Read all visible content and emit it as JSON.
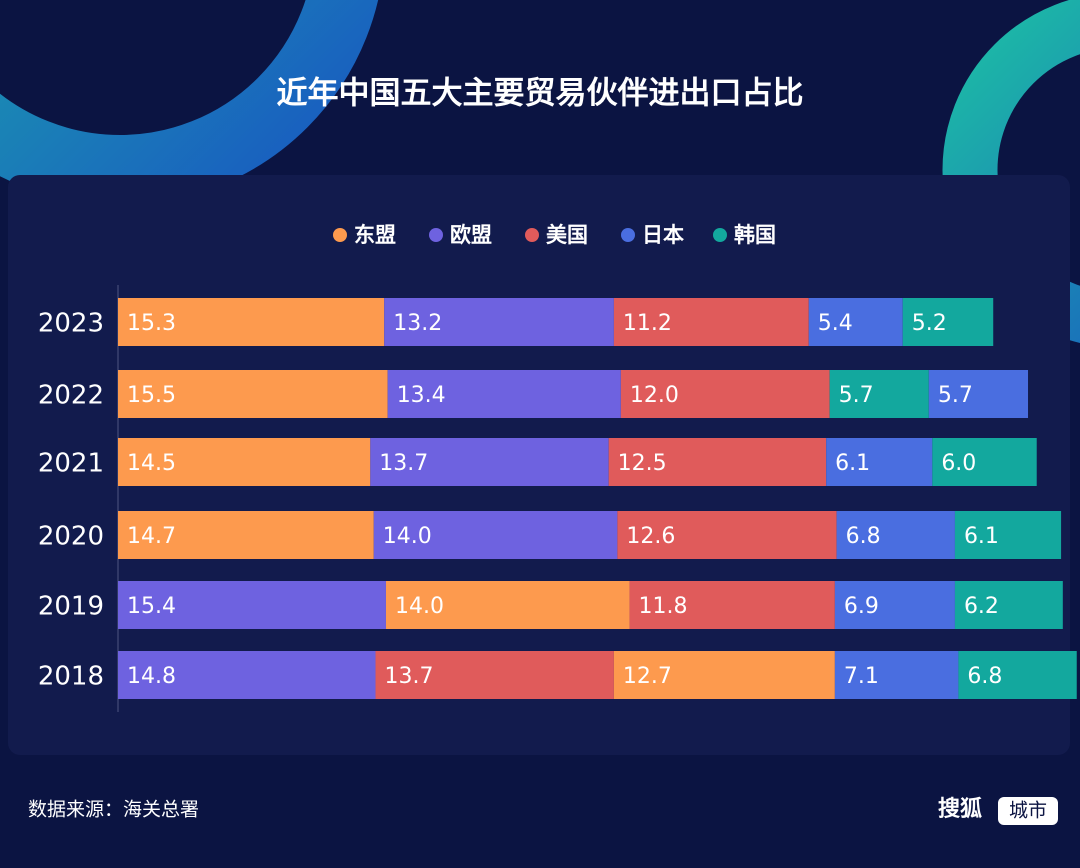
{
  "chart_data": {
    "type": "stacked-bar-horizontal",
    "title": "近年中国五大主要贸易伙伴进出口占比",
    "series": [
      {
        "name": "东盟",
        "color": "#fd9a4e"
      },
      {
        "name": "欧盟",
        "color": "#6e62e0"
      },
      {
        "name": "美国",
        "color": "#e05b5b"
      },
      {
        "name": "日本",
        "color": "#4a6ee0"
      },
      {
        "name": "韩国",
        "color": "#13a89e"
      }
    ],
    "rows": [
      {
        "category": "2023",
        "segments": [
          {
            "series": "东盟",
            "value": 15.3
          },
          {
            "series": "欧盟",
            "value": 13.2
          },
          {
            "series": "美国",
            "value": 11.2
          },
          {
            "series": "日本",
            "value": 5.4
          },
          {
            "series": "韩国",
            "value": 5.2
          }
        ]
      },
      {
        "category": "2022",
        "segments": [
          {
            "series": "东盟",
            "value": 15.5
          },
          {
            "series": "欧盟",
            "value": 13.4
          },
          {
            "series": "美国",
            "value": 12.0,
            "value_label": "12.0"
          },
          {
            "series": "韩国",
            "value": 5.7
          },
          {
            "series": "日本",
            "value": 5.7
          }
        ]
      },
      {
        "category": "2021",
        "segments": [
          {
            "series": "东盟",
            "value": 14.5
          },
          {
            "series": "欧盟",
            "value": 13.7
          },
          {
            "series": "美国",
            "value": 12.5
          },
          {
            "series": "日本",
            "value": 6.1
          },
          {
            "series": "韩国",
            "value": 6.0,
            "value_label": "6.0"
          }
        ]
      },
      {
        "category": "2020",
        "segments": [
          {
            "series": "东盟",
            "value": 14.7
          },
          {
            "series": "欧盟",
            "value": 14.0,
            "value_label": "14.0"
          },
          {
            "series": "美国",
            "value": 12.6
          },
          {
            "series": "日本",
            "value": 6.8
          },
          {
            "series": "韩国",
            "value": 6.1
          }
        ]
      },
      {
        "category": "2019",
        "segments": [
          {
            "series": "欧盟",
            "value": 15.4
          },
          {
            "series": "东盟",
            "value": 14.0,
            "value_label": "14.0"
          },
          {
            "series": "美国",
            "value": 11.8
          },
          {
            "series": "日本",
            "value": 6.9
          },
          {
            "series": "韩国",
            "value": 6.2
          }
        ]
      },
      {
        "category": "2018",
        "segments": [
          {
            "series": "欧盟",
            "value": 14.8
          },
          {
            "series": "美国",
            "value": 13.7
          },
          {
            "series": "东盟",
            "value": 12.7
          },
          {
            "series": "日本",
            "value": 7.1
          },
          {
            "series": "韩国",
            "value": 6.8
          }
        ]
      }
    ],
    "source": "数据来源：海关总署",
    "brand": [
      "搜狐",
      "城市"
    ]
  }
}
